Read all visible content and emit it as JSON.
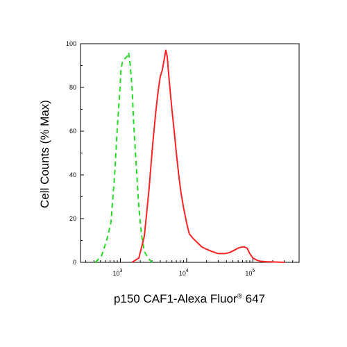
{
  "chart_data": {
    "type": "line",
    "title": "",
    "xlabel": "p150 CAF1-Alexa Fluor® 647",
    "ylabel": "Cell Counts (% Max)",
    "x_scale": "log",
    "xlim": [
      250,
      500000
    ],
    "ylim": [
      0,
      100
    ],
    "y_ticks": [
      0,
      20,
      40,
      60,
      80,
      100
    ],
    "y_tick_labels": [
      "0",
      "20",
      "40",
      "60",
      "80",
      "100"
    ],
    "x_ticks": [
      1000,
      10000,
      100000
    ],
    "x_tick_labels": [
      {
        "base": "10",
        "exp": "3"
      },
      {
        "base": "10",
        "exp": "4"
      },
      {
        "base": "10",
        "exp": "5"
      }
    ],
    "grid": false,
    "legend": "none",
    "series": [
      {
        "color": "#22dd22",
        "style": "dashed",
        "x": [
          420,
          520,
          620,
          720,
          820,
          900,
          980,
          1020,
          1080,
          1150,
          1250,
          1330,
          1400,
          1500,
          1600,
          1750,
          1900,
          2100,
          2300,
          2600,
          3000
        ],
        "y": [
          0,
          3,
          10,
          18,
          40,
          62,
          78,
          88,
          92,
          93,
          94,
          96,
          91,
          80,
          62,
          43,
          25,
          12,
          5,
          2,
          0
        ]
      },
      {
        "color": "#ff2222",
        "style": "solid",
        "x": [
          1500,
          1900,
          2300,
          2700,
          3100,
          3400,
          3700,
          4000,
          4300,
          4600,
          4850,
          5100,
          5500,
          6000,
          6500,
          7000,
          7600,
          8200,
          9000,
          10000,
          11000,
          12500,
          14500,
          17000,
          20000,
          24000,
          30000,
          38000,
          45000,
          52000,
          60000,
          68000,
          75000,
          82000,
          90000,
          100000,
          115000,
          130000,
          160000,
          200000,
          300000
        ],
        "y": [
          0,
          2,
          12,
          33,
          55,
          68,
          78,
          85,
          88,
          93,
          97,
          94,
          82,
          70,
          60,
          50,
          40,
          32,
          25,
          18,
          13,
          11,
          9,
          7,
          6,
          5,
          4,
          4,
          4.5,
          5.5,
          6.5,
          7,
          7,
          6.5,
          4,
          2,
          1,
          0.5,
          0.3,
          0.2,
          0
        ]
      }
    ]
  }
}
